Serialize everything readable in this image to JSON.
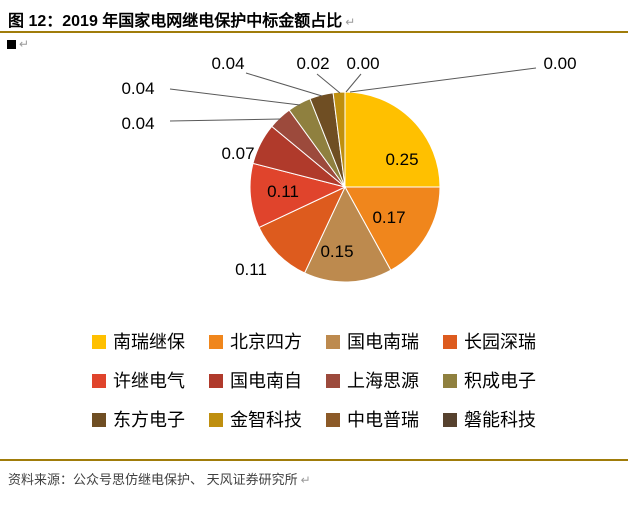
{
  "page": {
    "title": "图 12：2019 年国家电网继电保护中标金额占比",
    "paragraph_mark": "↵",
    "accent_rule_color": "#A07C0A",
    "source_label": "资料来源：",
    "source_text": "公众号思仿继电保护、 天风证券研究所"
  },
  "chart_data": {
    "type": "pie",
    "title": "2019 年国家电网继电保护中标金额占比",
    "start_angle": "top",
    "direction": "clockwise",
    "legend_position": "bottom",
    "categories": [
      "南瑞继保",
      "北京四方",
      "国电南瑞",
      "长园深瑞",
      "许继电气",
      "国电南自",
      "上海思源",
      "积成电子",
      "东方电子",
      "金智科技",
      "中电普瑞",
      "磐能科技"
    ],
    "values": [
      0.25,
      0.17,
      0.15,
      0.11,
      0.11,
      0.07,
      0.04,
      0.04,
      0.04,
      0.02,
      0.0,
      0.0
    ],
    "labels": [
      "0.25",
      "0.17",
      "0.15",
      "0.11",
      "0.11",
      "0.07",
      "0.04",
      "0.04",
      "0.04",
      "0.02",
      "0.00",
      "0.00"
    ],
    "colors": [
      "#FFC000",
      "#F0861C",
      "#BD8A4E",
      "#DD5B1E",
      "#E0442C",
      "#B03A2B",
      "#9C4A3C",
      "#8F803F",
      "#6F4E23",
      "#BF8F0F",
      "#8C5A28",
      "#57422E"
    ],
    "label_text_color": "#000000",
    "leader_line_color": "#595959"
  }
}
